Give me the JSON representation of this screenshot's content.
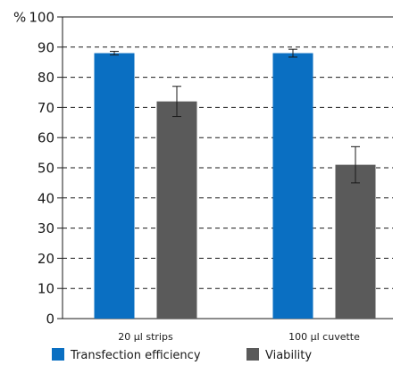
{
  "chart_data": {
    "type": "bar",
    "ylabel_prefix": "%",
    "categories": [
      "20 µl strips",
      "100 µl cuvette"
    ],
    "ylim": [
      0,
      100
    ],
    "yticks": [
      0,
      10,
      20,
      30,
      40,
      50,
      60,
      70,
      80,
      90,
      100
    ],
    "grid": true,
    "legend_position": "bottom-left",
    "series": [
      {
        "name": "Transfection efficiency",
        "color": "#0a6fc2",
        "values": [
          88,
          88
        ],
        "errors": [
          0.6,
          1.3
        ]
      },
      {
        "name": "Viability",
        "color": "#5a5a5a",
        "values": [
          72,
          51
        ],
        "errors": [
          5,
          6
        ]
      }
    ]
  }
}
